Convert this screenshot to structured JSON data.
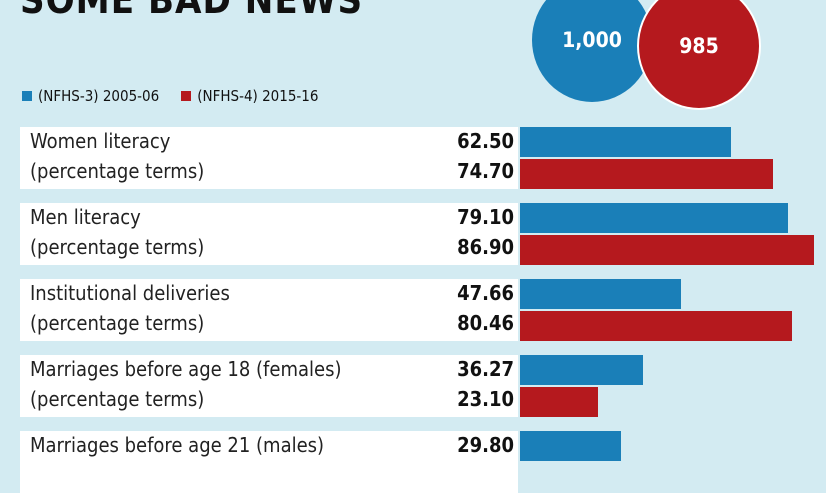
{
  "title": "SOME BAD NEWS",
  "circles": [
    {
      "value": "1,000",
      "color": "#1a7fb8"
    },
    {
      "value": "985",
      "color": "#b5191e"
    }
  ],
  "chart_data": {
    "type": "bar",
    "orientation": "horizontal",
    "series": [
      {
        "name": "(NFHS-3) 2005-06",
        "color": "#1a7fb8",
        "values": [
          62.5,
          79.1,
          47.66,
          36.27,
          29.8
        ]
      },
      {
        "name": "(NFHS-4) 2015-16",
        "color": "#b5191e",
        "values": [
          74.7,
          86.9,
          80.46,
          23.1,
          null
        ]
      }
    ],
    "categories": [
      {
        "label": "Women literacy",
        "sub": "(percentage terms)",
        "v1": "62.50",
        "v2": "74.70"
      },
      {
        "label": "Men literacy",
        "sub": "(percentage terms)",
        "v1": "79.10",
        "v2": "86.90"
      },
      {
        "label": "Institutional deliveries",
        "sub": "(percentage terms)",
        "v1": "47.66",
        "v2": "80.46"
      },
      {
        "label": "Marriages before age 18 (females)",
        "sub": "(percentage terms)",
        "v1": "36.27",
        "v2": "23.10"
      },
      {
        "label": "Marriages before age 21 (males)",
        "sub": "",
        "v1": "29.80",
        "v2": ""
      }
    ],
    "legend_position": "top-left",
    "grid": false
  }
}
